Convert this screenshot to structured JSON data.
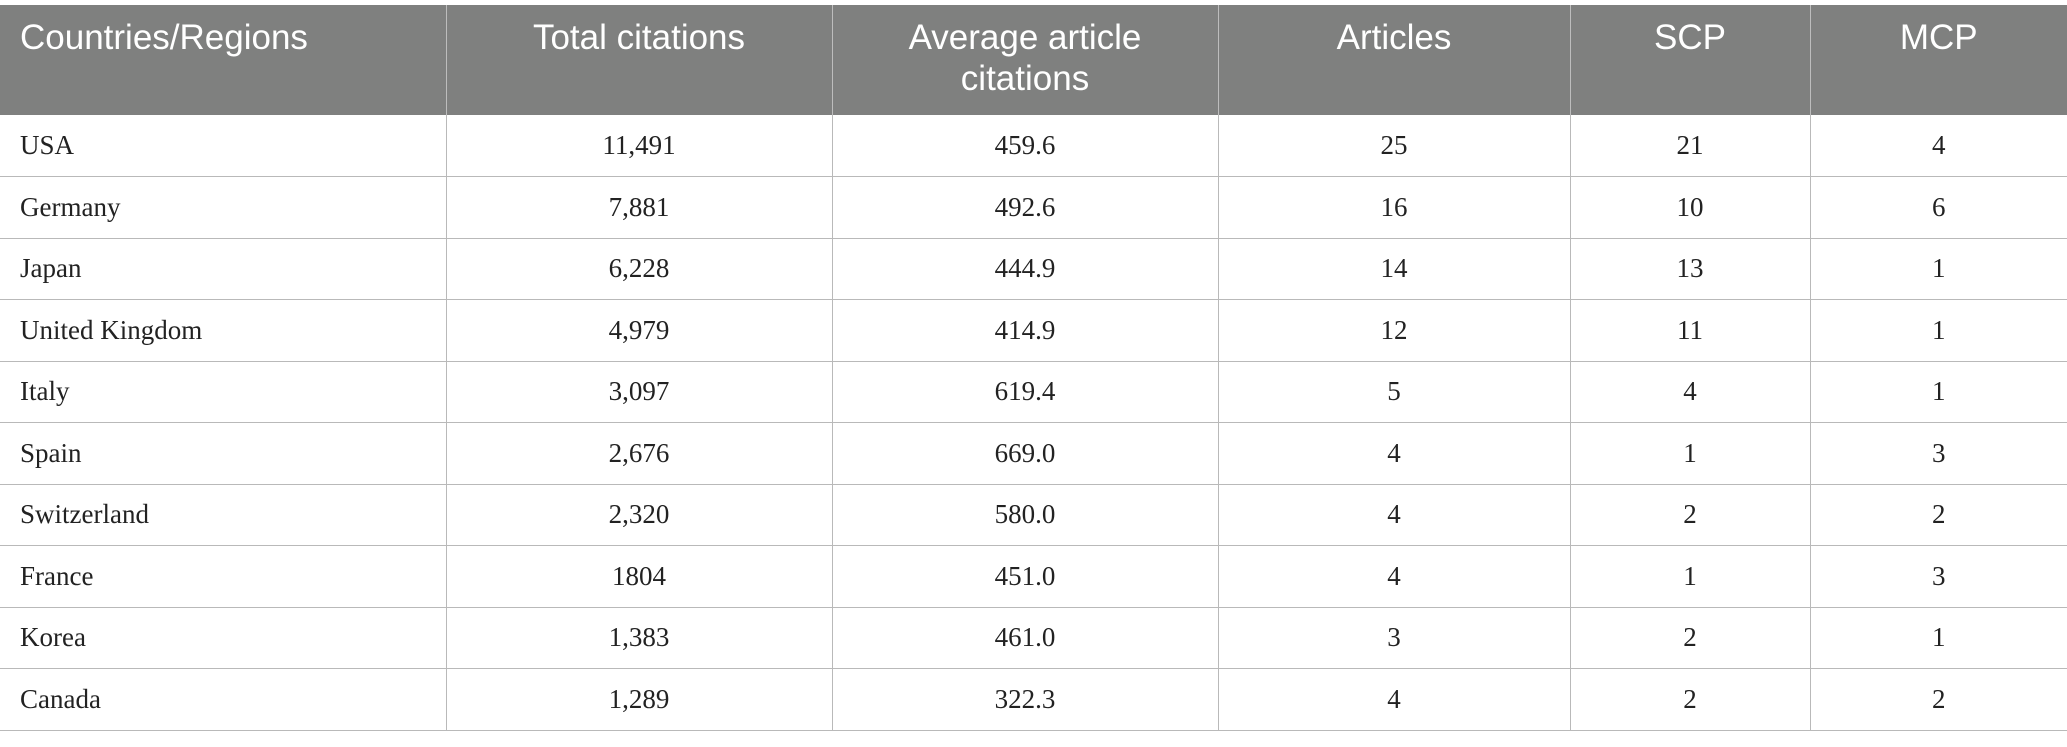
{
  "table": {
    "headers": [
      "Countries/Regions",
      "Total citations",
      "Average article citations",
      "Articles",
      "SCP",
      "MCP"
    ],
    "rows": [
      [
        "USA",
        "11,491",
        "459.6",
        "25",
        "21",
        "4"
      ],
      [
        "Germany",
        "7,881",
        "492.6",
        "16",
        "10",
        "6"
      ],
      [
        "Japan",
        "6,228",
        "444.9",
        "14",
        "13",
        "1"
      ],
      [
        "United Kingdom",
        "4,979",
        "414.9",
        "12",
        "11",
        "1"
      ],
      [
        "Italy",
        "3,097",
        "619.4",
        "5",
        "4",
        "1"
      ],
      [
        "Spain",
        "2,676",
        "669.0",
        "4",
        "1",
        "3"
      ],
      [
        "Switzerland",
        "2,320",
        "580.0",
        "4",
        "2",
        "2"
      ],
      [
        "France",
        "1804",
        "451.0",
        "4",
        "1",
        "3"
      ],
      [
        "Korea",
        "1,383",
        "461.0",
        "3",
        "2",
        "1"
      ],
      [
        "Canada",
        "1,289",
        "322.3",
        "4",
        "2",
        "2"
      ]
    ]
  },
  "colors": {
    "header_bg": "#7f807f",
    "header_text": "#ffffff",
    "grid_line": "#b9b9b9"
  }
}
